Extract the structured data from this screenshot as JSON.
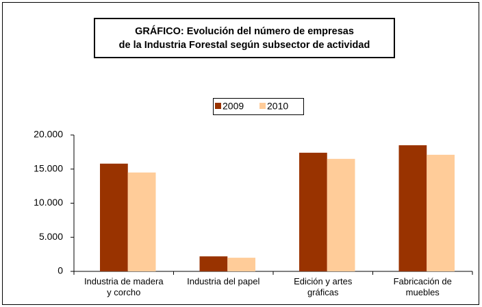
{
  "chart_data": {
    "type": "bar",
    "title": "GRÁFICO: Evolución del número de empresas\nde la Industria Forestal según subsector de actividad",
    "categories": [
      "Industria de madera\ny corcho",
      "Industria del papel",
      "Edición y artes\ngráficas",
      "Fabricación de\nmuebles"
    ],
    "series": [
      {
        "name": "2009",
        "color": "#993300",
        "values": [
          15800,
          2200,
          17400,
          18500
        ]
      },
      {
        "name": "2010",
        "color": "#ffcc99",
        "values": [
          14500,
          2000,
          16500,
          17100
        ]
      }
    ],
    "ylim": [
      0,
      20000
    ],
    "yticks": [
      0,
      {
        "value": 5000,
        "label": "5.000"
      },
      {
        "value": 10000,
        "label": "10.000"
      },
      {
        "value": 15000,
        "label": "15.000"
      },
      {
        "value": 20000,
        "label": "20.000"
      }
    ],
    "grid": false
  }
}
